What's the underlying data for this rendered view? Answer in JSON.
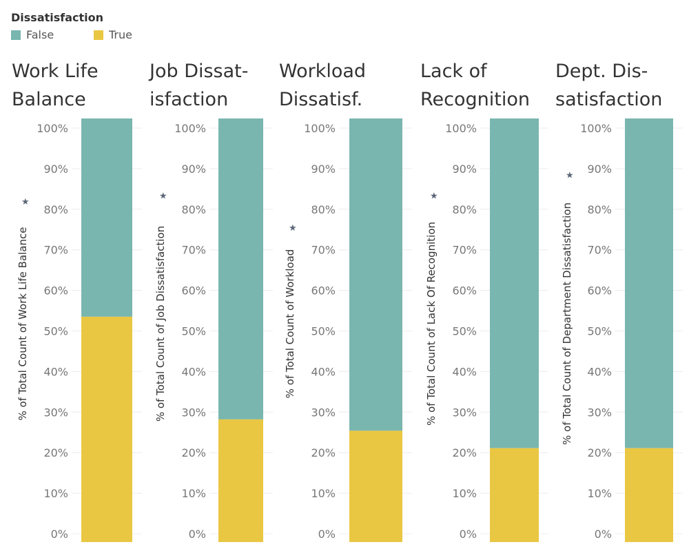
{
  "legend": {
    "title": "Dissatisfaction",
    "items": [
      {
        "label": "False",
        "color": "#79B6AF"
      },
      {
        "label": "True",
        "color": "#EAC743"
      }
    ]
  },
  "chart_data": {
    "type": "bar",
    "stacked": true,
    "ylim": [
      0,
      100
    ],
    "yticks": [
      "100%",
      "90%",
      "80%",
      "70%",
      "60%",
      "50%",
      "40%",
      "30%",
      "20%",
      "10%",
      "0%"
    ],
    "ytick_values": [
      100,
      90,
      80,
      70,
      60,
      50,
      40,
      30,
      20,
      10,
      0
    ],
    "panels": [
      {
        "title_lines": [
          "Work Life",
          "Balance"
        ],
        "ylabel": "% of Total Count of Work Life Balance",
        "series": [
          {
            "name": "True",
            "value": 53.5
          },
          {
            "name": "False",
            "value": 46.5
          }
        ]
      },
      {
        "title_lines": [
          "Job Dissat-",
          "isfaction"
        ],
        "ylabel": "% of Total Count of Job Dissatisfaction",
        "series": [
          {
            "name": "True",
            "value": 28.2
          },
          {
            "name": "False",
            "value": 71.8
          }
        ]
      },
      {
        "title_lines": [
          "Workload",
          "Dissatisf."
        ],
        "ylabel": "% of Total Count of Workload",
        "series": [
          {
            "name": "True",
            "value": 25.4
          },
          {
            "name": "False",
            "value": 74.6
          }
        ]
      },
      {
        "title_lines": [
          "Lack of",
          "Recognition"
        ],
        "ylabel": "% of Total Count of Lack Of Recognition",
        "series": [
          {
            "name": "True",
            "value": 21.1
          },
          {
            "name": "False",
            "value": 78.9
          }
        ]
      },
      {
        "title_lines": [
          "Dept. Dis-",
          "satisfaction"
        ],
        "ylabel": "% of Total Count of Department Dissatisfaction",
        "series": [
          {
            "name": "True",
            "value": 21.1
          },
          {
            "name": "False",
            "value": 78.9
          }
        ]
      }
    ]
  }
}
